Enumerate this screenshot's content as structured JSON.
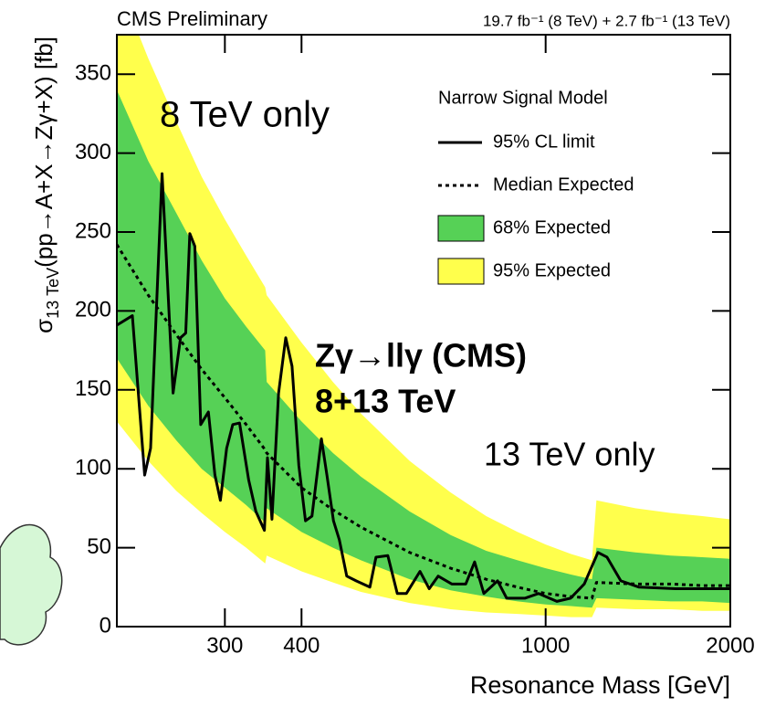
{
  "chart_data": {
    "type": "limit",
    "title": "CMS Preliminary",
    "subtitle": "19.7 fb⁻¹ (8 TeV) + 2.7 fb⁻¹ (13 TeV)",
    "x_label": "Resonance Mass [GeV]",
    "y_label": {
      "symbol": "σ",
      "subscript": "13 TeV",
      "text": "(pp→A+X→Zγ+X) [fb]"
    },
    "log_x": true,
    "xlim": [
      200,
      2000
    ],
    "xticks": [
      300,
      400,
      1000,
      2000
    ],
    "ylim": [
      0,
      375
    ],
    "yticks": [
      0,
      50,
      100,
      150,
      200,
      250,
      300,
      350
    ],
    "legend_title": "Narrow Signal Model",
    "annotations": [
      "8 TeV only",
      "Zγ→llγ (CMS)",
      "8+13 TeV",
      "13 TeV only"
    ],
    "x": [
      200,
      225,
      250,
      275,
      300,
      325,
      349,
      351,
      400,
      450,
      500,
      600,
      700,
      800,
      900,
      1000,
      1100,
      1190,
      1210,
      1400,
      1600,
      1800,
      2000
    ],
    "bands": [
      {
        "name": "95% Expected",
        "color": "#ffff4c",
        "lower": [
          130,
          105,
          86,
          72,
          60,
          50,
          40,
          45,
          35,
          28,
          22,
          15,
          11,
          9,
          8,
          7,
          6,
          6,
          12,
          11,
          11,
          10,
          10
        ],
        "upper": [
          410,
          360,
          320,
          285,
          258,
          235,
          215,
          210,
          180,
          155,
          135,
          105,
          85,
          70,
          60,
          52,
          46,
          42,
          80,
          75,
          72,
          70,
          68
        ]
      },
      {
        "name": "68% Expected",
        "color": "#56d156",
        "lower": [
          170,
          140,
          118,
          100,
          88,
          77,
          66,
          75,
          60,
          50,
          42,
          30,
          23,
          19,
          16,
          14,
          13,
          12,
          18,
          17,
          16,
          16,
          15
        ],
        "upper": [
          340,
          295,
          262,
          232,
          208,
          190,
          175,
          155,
          130,
          110,
          95,
          73,
          58,
          48,
          42,
          37,
          33,
          30,
          50,
          47,
          45,
          44,
          43
        ]
      }
    ],
    "series": [
      {
        "name": "95% CL limit",
        "color": "#000000",
        "style": "solid",
        "x": [
          200,
          212,
          222,
          227,
          237,
          247,
          254,
          259,
          263,
          268,
          274,
          282,
          289,
          295,
          302,
          309,
          317,
          328,
          337,
          348,
          352,
          358,
          367,
          377,
          386,
          396,
          406,
          416,
          431,
          440,
          451,
          461,
          474,
          491,
          517,
          529,
          553,
          573,
          593,
          624,
          646,
          668,
          703,
          741,
          766,
          793,
          835,
          864,
          925,
          974,
          1043,
          1098,
          1156,
          1217,
          1259,
          1326,
          1420,
          1628,
          2000
        ],
        "values": [
          191,
          197,
          96,
          113,
          287,
          148,
          183,
          186,
          249,
          241,
          128,
          136,
          96,
          80,
          113,
          128,
          129,
          93,
          73,
          61,
          107,
          68,
          148,
          183,
          165,
          102,
          67,
          70,
          119,
          96,
          67,
          55,
          32,
          29,
          25,
          44,
          45,
          21,
          21,
          35,
          24,
          32,
          27,
          27,
          41,
          21,
          29,
          18,
          18,
          21,
          16,
          18,
          27,
          47,
          44,
          29,
          25,
          24,
          24
        ]
      },
      {
        "name": "Median Expected",
        "color": "#000000",
        "style": "dotted",
        "values": [
          242,
          210,
          185,
          163,
          145,
          128,
          112,
          110,
          88,
          74,
          63,
          47,
          37,
          30,
          25,
          21,
          19,
          18,
          28,
          27,
          27,
          26,
          26
        ]
      }
    ]
  }
}
